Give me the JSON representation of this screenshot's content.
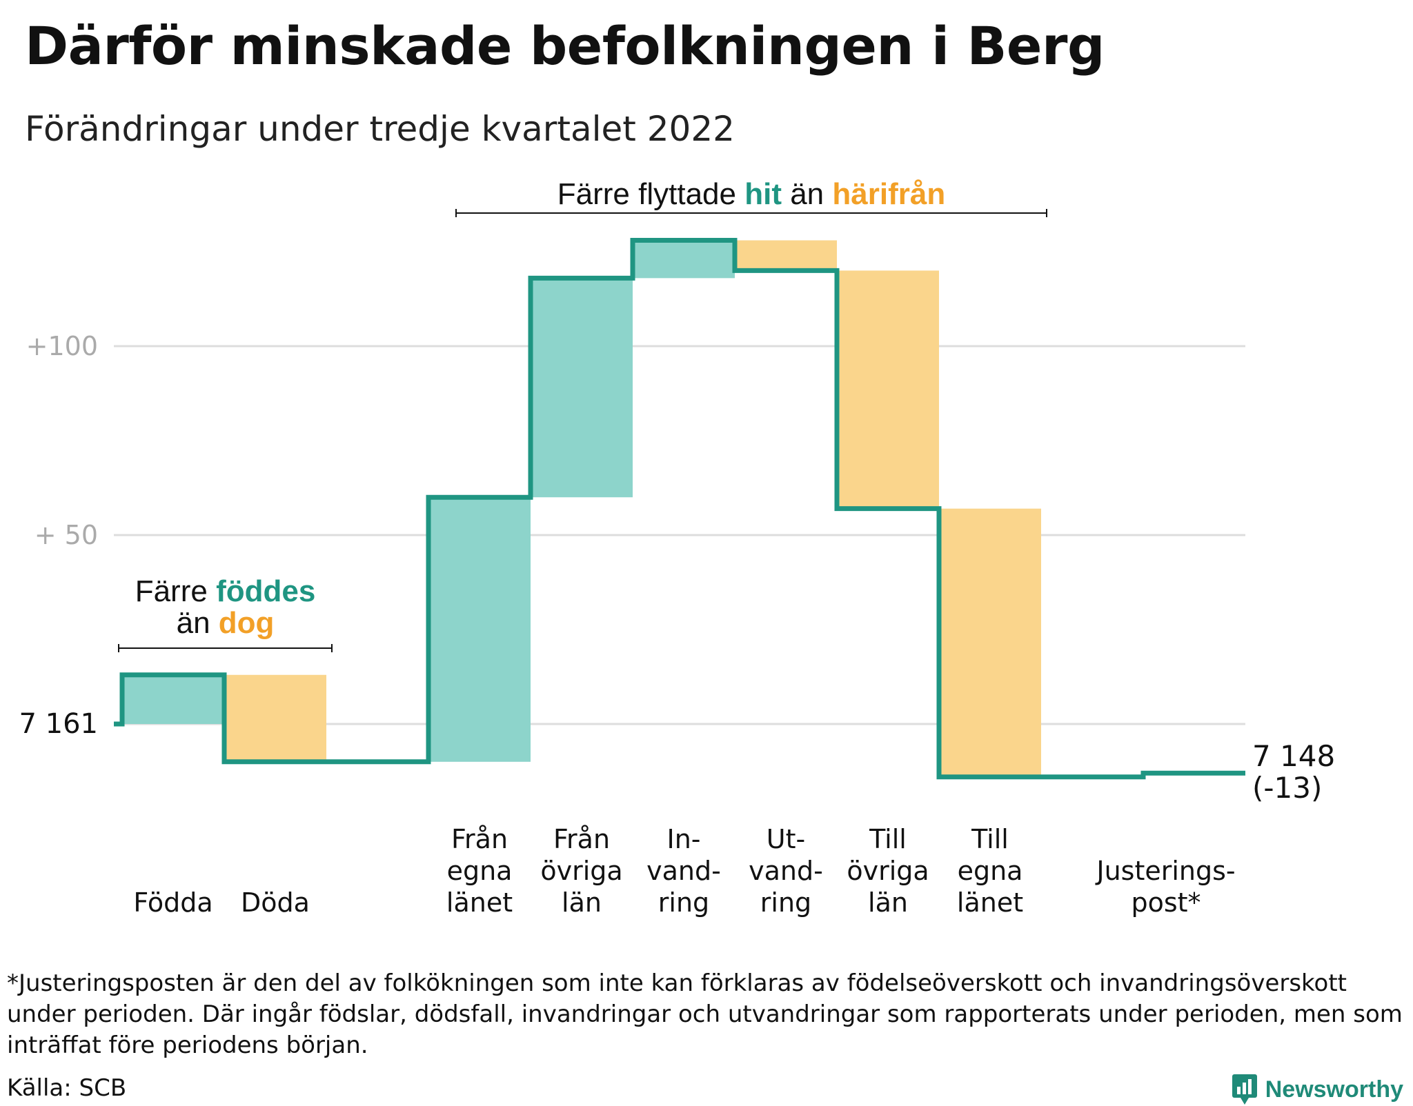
{
  "title": "Därför minskade befolkningen i Berg",
  "subtitle": "Förändringar under tredje kvartalet 2022",
  "footnote": "*Justeringsposten är den del av folkökningen som inte kan förklaras av födelseöverskott och invandringsöverskott under perioden. Där ingår födslar, dödsfall, invandringar och utvandringar som rapporterats under perioden, men som inträffat före periodens början.",
  "source": "Källa: SCB",
  "brand": "Newsworthy",
  "colors": {
    "inflow": "#8dd4cb",
    "outflow": "#fad58c",
    "line": "#1f9582",
    "accent_green": "#1f9582",
    "accent_orange": "#f2a027",
    "grid": "#dddddd",
    "axis_text": "#aaaaaa"
  },
  "chart_data": {
    "type": "waterfall",
    "baseline": 7161,
    "baseline_label": "7 161",
    "end_label_value": "7 148",
    "end_label_change": "(-13)",
    "yaxis_ticks": [
      {
        "offset": 50,
        "label": "+ 50"
      },
      {
        "offset": 100,
        "label": "+100"
      }
    ],
    "ylim": [
      -20,
      125
    ],
    "steps": [
      {
        "label_lines": [
          "Födda"
        ],
        "change": 13,
        "kind": "in"
      },
      {
        "label_lines": [
          "Döda"
        ],
        "change": -23,
        "kind": "out"
      },
      {
        "label_lines": [
          ""
        ],
        "change": 0,
        "kind": "none"
      },
      {
        "label_lines": [
          "Från",
          "egna",
          "länet"
        ],
        "change": 70,
        "kind": "in"
      },
      {
        "label_lines": [
          "Från",
          "övriga",
          "län"
        ],
        "change": 58,
        "kind": "in"
      },
      {
        "label_lines": [
          "In-",
          "vand-",
          "ring"
        ],
        "change": 10,
        "kind": "in"
      },
      {
        "label_lines": [
          "Ut-",
          "vand-",
          "ring"
        ],
        "change": -8,
        "kind": "out"
      },
      {
        "label_lines": [
          "Till",
          "övriga",
          "län"
        ],
        "change": -63,
        "kind": "out"
      },
      {
        "label_lines": [
          "Till",
          "egna",
          "länet"
        ],
        "change": -71,
        "kind": "out"
      },
      {
        "label_lines": [
          ""
        ],
        "change": 0,
        "kind": "none"
      },
      {
        "label_lines": [
          "Justerings-",
          "post*"
        ],
        "change": 1,
        "kind": "adjust"
      }
    ],
    "annotations": [
      {
        "lines": [
          [
            {
              "t": "Färre ",
              "c": "dark"
            },
            {
              "t": "föddes",
              "c": "green"
            }
          ],
          [
            {
              "t": "än ",
              "c": "dark"
            },
            {
              "t": "dog",
              "c": "orange"
            }
          ]
        ],
        "from_step": 0,
        "to_step": 1
      },
      {
        "lines": [
          [
            {
              "t": "Färre flyttade ",
              "c": "dark"
            },
            {
              "t": "hit",
              "c": "green"
            },
            {
              "t": " än ",
              "c": "dark"
            },
            {
              "t": "härifrån",
              "c": "orange"
            }
          ]
        ],
        "from_step": 3,
        "to_step": 8
      }
    ]
  }
}
